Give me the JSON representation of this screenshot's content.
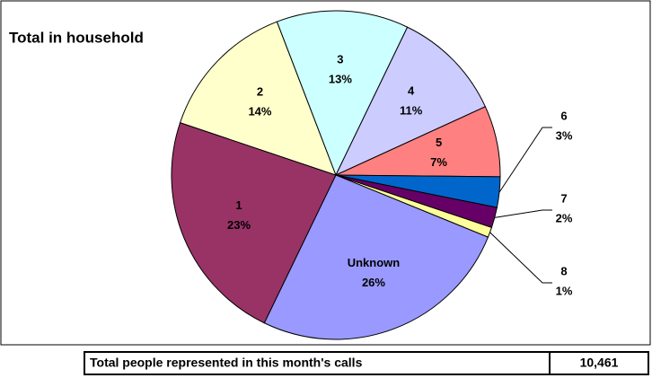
{
  "chart_data": {
    "type": "pie",
    "title": "Total in household",
    "categories": [
      "1",
      "2",
      "3",
      "4",
      "5",
      "6",
      "7",
      "8",
      "Unknown"
    ],
    "values": [
      23,
      14,
      13,
      11,
      7,
      3,
      2,
      1,
      26
    ],
    "value_labels": [
      "23%",
      "14%",
      "13%",
      "11%",
      "7%",
      "3%",
      "2%",
      "1%",
      "26%"
    ],
    "colors": [
      "#993366",
      "#ffffcc",
      "#ccffff",
      "#ccccff",
      "#ff8080",
      "#0066cc",
      "#660066",
      "#ffff99",
      "#9999ff"
    ]
  },
  "table": {
    "label": "Total people represented in this month's calls",
    "value": "10,461"
  }
}
